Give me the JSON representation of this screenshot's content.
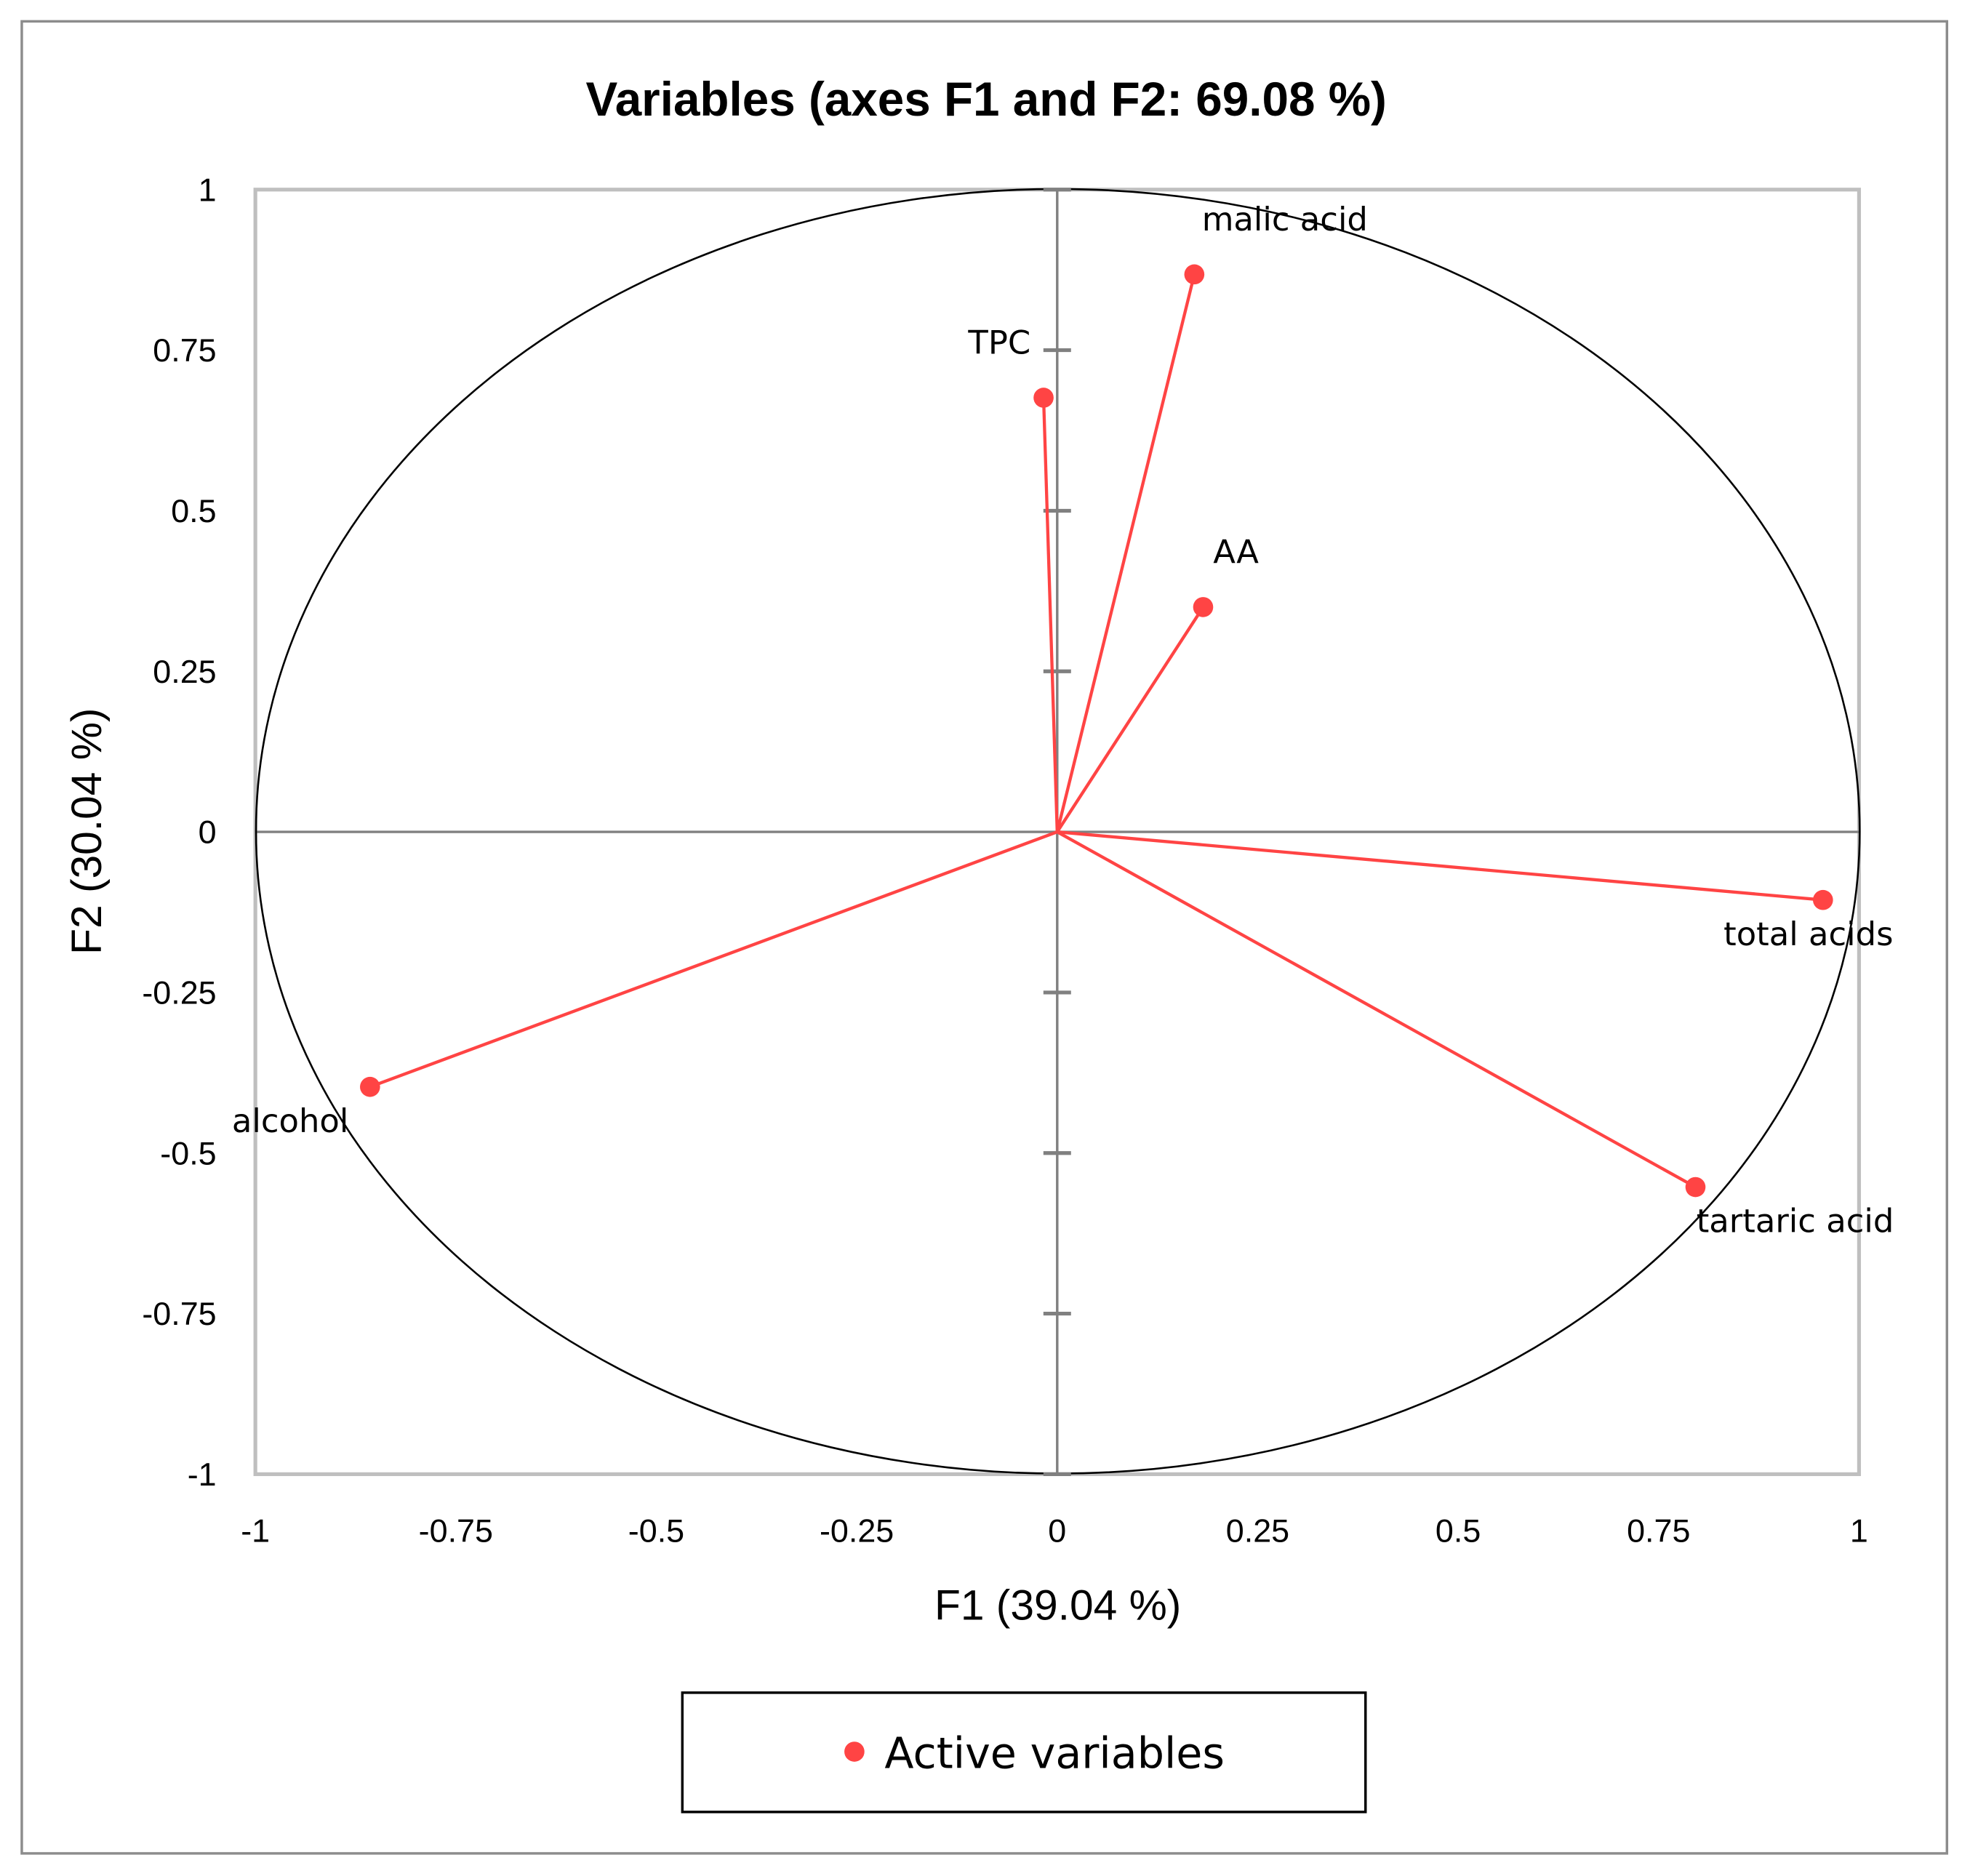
{
  "chart_data": {
    "type": "scatter",
    "title": "Variables (axes F1 and F2: 69.08 %)",
    "xlabel": "F1 (39.04 %)",
    "ylabel": "F2 (30.04 %)",
    "xlim": [
      -1,
      1
    ],
    "ylim": [
      -1,
      1
    ],
    "xticks": [
      "-1",
      "-0.75",
      "-0.5",
      "-0.25",
      "0",
      "0.25",
      "0.5",
      "0.75",
      "1"
    ],
    "yticks": [
      "1",
      "0.75",
      "0.5",
      "0.25",
      "0",
      "-0.25",
      "-0.5",
      "-0.75",
      "-1"
    ],
    "grid": false,
    "correlation_circle": true,
    "legend": {
      "position": "bottom",
      "entries": [
        "Active variables"
      ]
    },
    "colors": {
      "points": "#ff4444",
      "circle": "#000000",
      "axes": "#808080",
      "frame": "#bfbfbf"
    },
    "points": [
      {
        "label": "malic acid",
        "x": 0.171,
        "y": 0.868
      },
      {
        "label": "TPC",
        "x": -0.017,
        "y": 0.676
      },
      {
        "label": "AA",
        "x": 0.182,
        "y": 0.35
      },
      {
        "label": "total acids",
        "x": 0.955,
        "y": -0.106
      },
      {
        "label": "tartaric acid",
        "x": 0.796,
        "y": -0.553
      },
      {
        "label": "alcohol",
        "x": -0.857,
        "y": -0.397
      }
    ]
  }
}
